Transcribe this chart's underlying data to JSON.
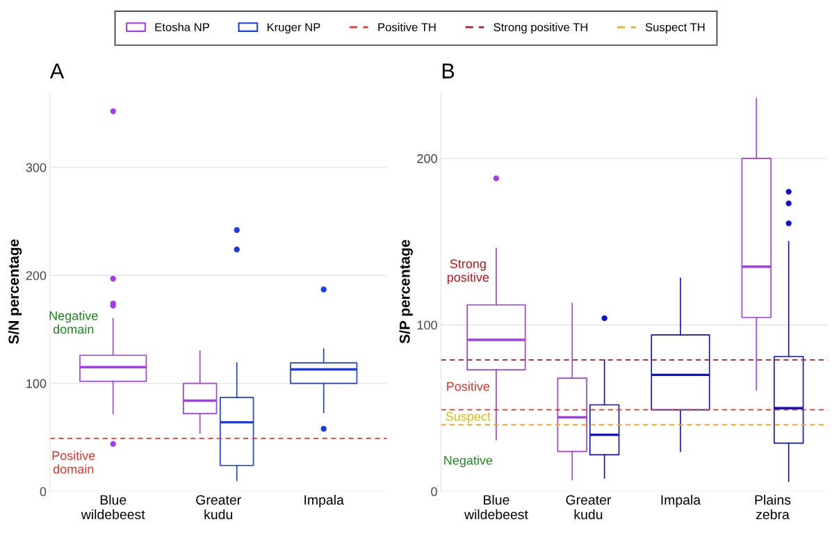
{
  "chart_data": [
    {
      "type": "box",
      "title": "A",
      "ylabel": "S/N percentage",
      "categories": [
        "Blue\nwildebeest",
        "Greater\nkudu",
        "Impala"
      ],
      "ylim": [
        0,
        370
      ],
      "yticks": [
        0,
        100,
        200,
        300
      ],
      "grid": "y",
      "legend": "top",
      "series": [
        {
          "name": "Etosha NP",
          "color": "#a13ee6",
          "boxes": [
            {
              "low": 72,
              "q1": 102,
              "median": 115,
              "q3": 126,
              "high": 160,
              "outliers": [
                352,
                197,
                174,
                172,
                44
              ]
            },
            {
              "low": 54,
              "q1": 72,
              "median": 84,
              "q3": 100,
              "high": 130
            },
            null
          ]
        },
        {
          "name": "Kruger NP",
          "color": "#1a3cf0",
          "boxes": [
            null,
            {
              "low": 10,
              "q1": 24,
              "median": 64,
              "q3": 87,
              "high": 119,
              "outliers": [
                242,
                224
              ]
            },
            {
              "low": 73,
              "q1": 100,
              "median": 113,
              "q3": 119,
              "high": 132,
              "outliers": [
                187,
                58
              ]
            }
          ]
        }
      ],
      "ref_lines": [
        {
          "axis": "y",
          "value": 49,
          "color": "#e8332a",
          "line_style": "dashed"
        }
      ],
      "annotations": [
        "Negative\ndomain",
        "Positive\ndomain"
      ]
    },
    {
      "type": "box",
      "title": "B",
      "ylabel": "S/P percentage",
      "categories": [
        "Blue\nwildebeest",
        "Greater\nkudu",
        "Impala",
        "Plains\nzebra"
      ],
      "ylim": [
        0,
        240
      ],
      "yticks": [
        0,
        100,
        200
      ],
      "grid": "y",
      "legend": "top",
      "series": [
        {
          "name": "Etosha NP",
          "color": "#a13ee6",
          "boxes": [
            {
              "low": 31,
              "q1": 73,
              "median": 91,
              "q3": 112,
              "high": 146,
              "outliers": [
                188
              ]
            },
            {
              "low": 7,
              "q1": 24,
              "median": 44.5,
              "q3": 68,
              "high": 113
            },
            null,
            {
              "low": 61,
              "q1": 104.5,
              "median": 135,
              "q3": 200,
              "high": 236
            }
          ]
        },
        {
          "name": "Kruger NP",
          "color": "#1010d0",
          "boxes": [
            null,
            {
              "low": 8,
              "q1": 22,
              "median": 34,
              "q3": 52,
              "high": 79,
              "outliers": [
                104
              ]
            },
            {
              "low": 24,
              "q1": 49,
              "median": 70,
              "q3": 94,
              "high": 128
            },
            {
              "low": 6,
              "q1": 29,
              "median": 50,
              "q3": 81,
              "high": 150,
              "outliers": [
                180,
                173,
                161
              ]
            }
          ]
        }
      ],
      "ref_lines": [
        {
          "axis": "y",
          "value": 49,
          "label": "Positive TH",
          "color": "#e8332a",
          "line_style": "dashed"
        },
        {
          "axis": "y",
          "value": 79,
          "label": "Strong positive TH",
          "color": "#c0141c",
          "line_style": "dashed"
        },
        {
          "axis": "y",
          "value": 40,
          "label": "Suspect TH",
          "color": "#f5a623",
          "line_style": "dashed"
        }
      ],
      "annotations": [
        "Strong\npositive",
        "Positive",
        "Suspect",
        "Negative"
      ]
    }
  ]
}
